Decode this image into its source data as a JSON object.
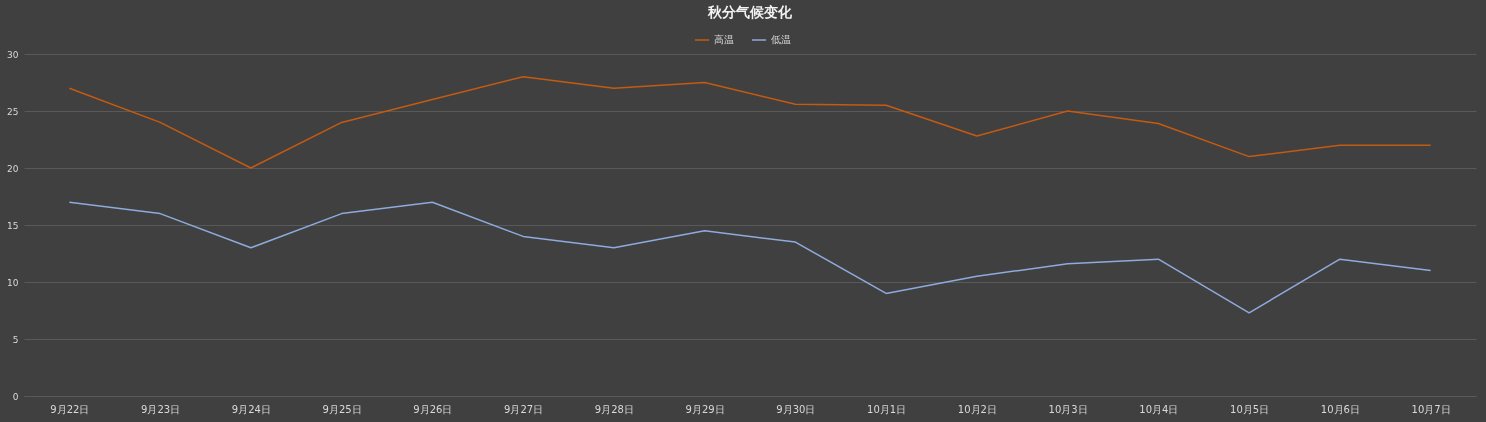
{
  "chart_data": {
    "type": "line",
    "title": "秋分气候变化",
    "categories": [
      "9月22日",
      "9月23日",
      "9月24日",
      "9月25日",
      "9月26日",
      "9月27日",
      "9月28日",
      "9月29日",
      "9月30日",
      "10月1日",
      "10月2日",
      "10月3日",
      "10月4日",
      "10月5日",
      "10月6日",
      "10月7日"
    ],
    "series": [
      {
        "name": "高温",
        "color": "#c55a11",
        "values": [
          27,
          24,
          20,
          24,
          26,
          28,
          27,
          27.5,
          25.6,
          25.5,
          22.8,
          25,
          23.9,
          21,
          22,
          22
        ]
      },
      {
        "name": "低温",
        "color": "#8faadc",
        "values": [
          17,
          16,
          13,
          16,
          17,
          14,
          13,
          14.5,
          13.5,
          9,
          10.5,
          11.6,
          12,
          7.3,
          12,
          11
        ]
      }
    ],
    "ylim": [
      0,
      30
    ],
    "yticks": [
      0,
      5,
      10,
      15,
      20,
      25,
      30
    ],
    "grid": "y",
    "legend": "top",
    "marker": "none",
    "line_style": "solid"
  }
}
